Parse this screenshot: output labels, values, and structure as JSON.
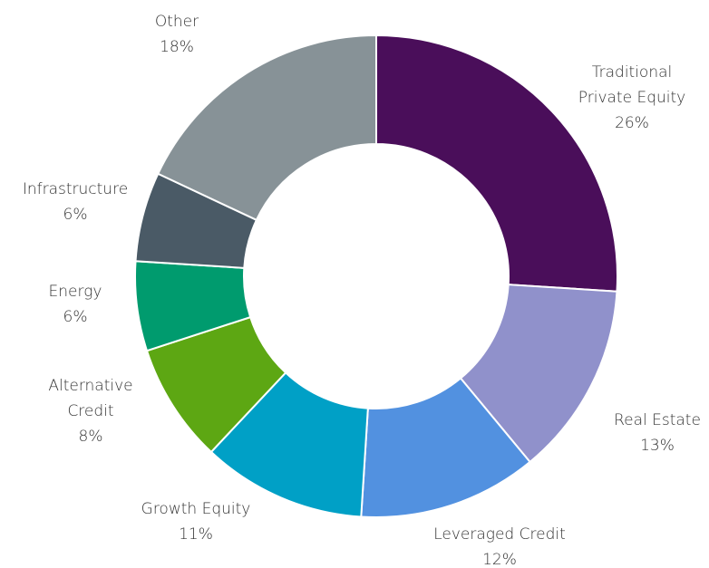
{
  "chart_data": {
    "type": "donut",
    "categories": [
      "Traditional Private Equity",
      "Real Estate",
      "Leveraged Credit",
      "Growth Equity",
      "Alternative Credit",
      "Energy",
      "Infrastructure",
      "Other"
    ],
    "values": [
      26,
      13,
      12,
      11,
      8,
      6,
      6,
      18
    ],
    "value_labels": [
      "26%",
      "13%",
      "12%",
      "11%",
      "8%",
      "6%",
      "6%",
      "18%"
    ],
    "colors": [
      "#4a0e5a",
      "#9091cb",
      "#5291e0",
      "#00a0c6",
      "#5da713",
      "#009b6e",
      "#4a5a66",
      "#879297"
    ]
  }
}
